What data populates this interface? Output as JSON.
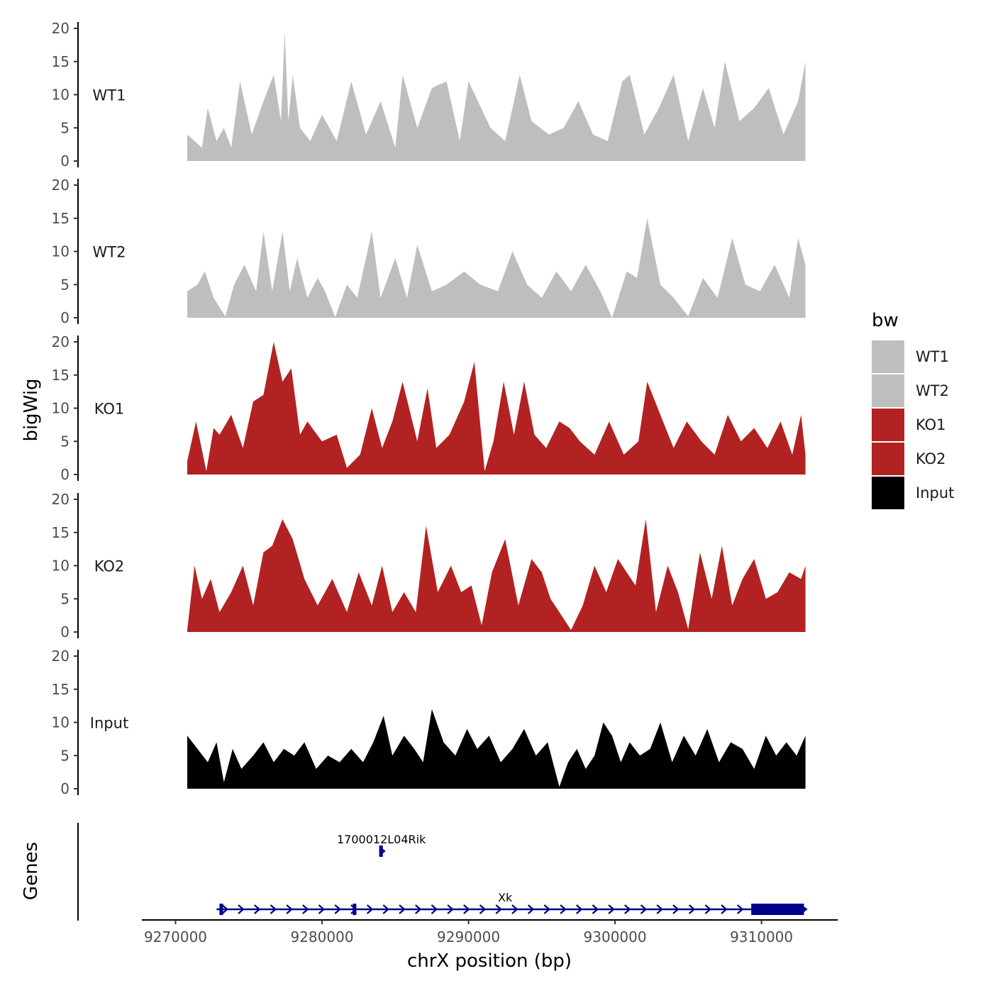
{
  "chart_data": {
    "type": "area",
    "y_axis_title": "bigWig",
    "x_axis_title": "chrX position (bp)",
    "gene_panel_title": "Genes",
    "region": [
      9270800,
      9313000
    ],
    "ylim": [
      0,
      20
    ],
    "y_ticks": [
      0,
      5,
      10,
      15,
      20
    ],
    "y_tick_labels": [
      "0",
      "5",
      "10",
      "15",
      "20"
    ],
    "x_ticks": [
      9270000,
      9280000,
      9290000,
      9300000,
      9310000
    ],
    "x_tick_labels": [
      "9270000",
      "9280000",
      "9290000",
      "9300000",
      "9310000"
    ],
    "x_axis_range": [
      9267700,
      9315200
    ],
    "legend": {
      "title": "bw",
      "entries": [
        {
          "name": "WT1",
          "color": "#bebebe"
        },
        {
          "name": "WT2",
          "color": "#bebebe"
        },
        {
          "name": "KO1",
          "color": "#b22222"
        },
        {
          "name": "KO2",
          "color": "#b22222"
        },
        {
          "name": "Input",
          "color": "#000000"
        }
      ]
    },
    "tracks": [
      {
        "name": "WT1",
        "color": "#bebebe",
        "x": [
          9270800,
          9271800,
          9272200,
          9272800,
          9273300,
          9273800,
          9274400,
          9275200,
          9276000,
          9276700,
          9277200,
          9277450,
          9277700,
          9278000,
          9278500,
          9279200,
          9280000,
          9281000,
          9282000,
          9283000,
          9284000,
          9285000,
          9285500,
          9286500,
          9287500,
          9288500,
          9289400,
          9290000,
          9291500,
          9292500,
          9293500,
          9294300,
          9295500,
          9296500,
          9297500,
          9298500,
          9299500,
          9300500,
          9301000,
          9302000,
          9303000,
          9304000,
          9305000,
          9306000,
          9306800,
          9307500,
          9308500,
          9309500,
          9310500,
          9311500,
          9312500,
          9313000
        ],
        "values": [
          4,
          2,
          8,
          3,
          5,
          2,
          12,
          4,
          9,
          13,
          6,
          19.5,
          6,
          13,
          5,
          3,
          7,
          3,
          12,
          4,
          9,
          2,
          13,
          5,
          11,
          12,
          3,
          12,
          5,
          3,
          13,
          6,
          4,
          5,
          9,
          4,
          3,
          12,
          13,
          4,
          8,
          13,
          3,
          11,
          5,
          15,
          6,
          8,
          11,
          4,
          9,
          15
        ]
      },
      {
        "name": "WT2",
        "color": "#bebebe",
        "x": [
          9270800,
          9271500,
          9272000,
          9272600,
          9273400,
          9274000,
          9274700,
          9275500,
          9276000,
          9276600,
          9277300,
          9277800,
          9278300,
          9279000,
          9279700,
          9280200,
          9280900,
          9281700,
          9282400,
          9283400,
          9284000,
          9285000,
          9285800,
          9286500,
          9287500,
          9288500,
          9289700,
          9290800,
          9292000,
          9293000,
          9294000,
          9295000,
          9296000,
          9297000,
          9298000,
          9299000,
          9299800,
          9300800,
          9301500,
          9302200,
          9303100,
          9304000,
          9305000,
          9306000,
          9307000,
          9308000,
          9308900,
          9309900,
          9310900,
          9311900,
          9312500,
          9313000
        ],
        "values": [
          4,
          5,
          7,
          3,
          0.2,
          5,
          8,
          4,
          13,
          4,
          13,
          4,
          9,
          3,
          6,
          4,
          0.1,
          5,
          3,
          13,
          3,
          9,
          3,
          11,
          4,
          5,
          7,
          5,
          4,
          10,
          5,
          3,
          7,
          4,
          8,
          4,
          0,
          7,
          6,
          15,
          5,
          3,
          0.2,
          6,
          3,
          12,
          5,
          4,
          8,
          3,
          12,
          8
        ]
      },
      {
        "name": "KO1",
        "color": "#b22222",
        "x": [
          9270800,
          9271400,
          9272100,
          9272600,
          9273000,
          9273800,
          9274600,
          9275300,
          9276000,
          9276700,
          9277300,
          9277900,
          9278500,
          9279000,
          9280000,
          9281000,
          9281700,
          9282600,
          9283400,
          9284100,
          9284800,
          9285500,
          9286500,
          9287200,
          9287800,
          9288700,
          9289700,
          9290400,
          9291100,
          9291700,
          9292400,
          9293100,
          9293800,
          9294500,
          9295300,
          9296200,
          9296900,
          9297600,
          9298600,
          9299600,
          9300600,
          9301600,
          9302200,
          9303100,
          9304000,
          9304900,
          9305900,
          9306800,
          9307700,
          9308600,
          9309500,
          9310400,
          9311300,
          9312100,
          9312700,
          9313000
        ],
        "values": [
          2,
          8,
          0.5,
          7,
          6,
          9,
          4,
          11,
          12,
          20,
          14,
          16,
          6,
          8,
          5,
          6,
          1,
          3,
          10,
          4,
          8,
          14,
          5,
          13,
          4,
          6,
          11,
          17,
          0.5,
          5,
          14,
          6,
          14,
          6,
          4,
          8,
          7,
          5,
          3,
          8,
          3,
          5,
          14,
          9,
          4,
          8,
          5,
          3,
          9,
          5,
          7,
          4,
          8,
          3,
          9,
          3
        ]
      },
      {
        "name": "KO2",
        "color": "#b22222",
        "x": [
          9270800,
          9271300,
          9271800,
          9272400,
          9273000,
          9273800,
          9274600,
          9275300,
          9276000,
          9276600,
          9277300,
          9278000,
          9278800,
          9279700,
          9280700,
          9281700,
          9282500,
          9283400,
          9284100,
          9284800,
          9285600,
          9286400,
          9287100,
          9287900,
          9288800,
          9289500,
          9290200,
          9290900,
          9291600,
          9292500,
          9293400,
          9294300,
          9295000,
          9295600,
          9296200,
          9297000,
          9297800,
          9298600,
          9299400,
          9300200,
          9300800,
          9301400,
          9302100,
          9302800,
          9303600,
          9304300,
          9305000,
          9305800,
          9306600,
          9307300,
          9308000,
          9308700,
          9309500,
          9310300,
          9311100,
          9311900,
          9312700,
          9313000
        ],
        "values": [
          0.3,
          10,
          5,
          8,
          3,
          6,
          10,
          4,
          12,
          13,
          17,
          14,
          8,
          4,
          8,
          3,
          9,
          4,
          10,
          3,
          6,
          3,
          16,
          6,
          10,
          6,
          7,
          1,
          9,
          14,
          4,
          11,
          9,
          5,
          3,
          0.3,
          4,
          10,
          6,
          11,
          9,
          7,
          17,
          3,
          10,
          6,
          0.4,
          12,
          5,
          13,
          4,
          8,
          11,
          5,
          6,
          9,
          8,
          10
        ]
      },
      {
        "name": "Input",
        "color": "#000000",
        "x": [
          9270800,
          9271500,
          9272200,
          9272800,
          9273300,
          9273900,
          9274500,
          9275300,
          9276000,
          9276700,
          9277400,
          9278100,
          9278800,
          9279600,
          9280400,
          9281200,
          9282000,
          9282800,
          9283500,
          9284200,
          9284800,
          9285600,
          9286300,
          9286900,
          9287500,
          9288300,
          9289100,
          9289900,
          9290600,
          9291400,
          9292200,
          9293000,
          9293800,
          9294600,
          9295400,
          9296200,
          9296800,
          9297400,
          9298000,
          9298600,
          9299200,
          9299800,
          9300400,
          9301000,
          9301700,
          9302400,
          9303100,
          9303900,
          9304700,
          9305500,
          9306300,
          9307100,
          9307900,
          9308700,
          9309500,
          9310300,
          9311000,
          9311700,
          9312400,
          9313000
        ],
        "values": [
          8,
          6,
          4,
          7,
          1,
          6,
          3,
          5,
          7,
          4,
          6,
          5,
          7,
          3,
          5,
          4,
          6,
          4,
          7,
          11,
          5,
          8,
          6,
          4,
          12,
          7,
          5,
          9,
          6,
          8,
          4,
          6,
          9,
          5,
          7,
          0.3,
          4,
          6,
          3,
          5,
          10,
          8,
          4,
          7,
          5,
          6,
          10,
          4,
          8,
          5,
          9,
          4,
          7,
          6,
          3,
          8,
          5,
          7,
          5,
          8
        ]
      }
    ],
    "genes": [
      {
        "name": "1700012L04Rik",
        "strand": "+",
        "row": 1,
        "start": 9283900,
        "end": 9284200,
        "exons": [
          [
            9283900,
            9284150
          ]
        ]
      },
      {
        "name": "Xk",
        "strand": "+",
        "row": 2,
        "start": 9272800,
        "end": 9313000,
        "exons": [
          [
            9273000,
            9273200
          ],
          [
            9282100,
            9282250
          ],
          [
            9309300,
            9312900
          ]
        ]
      }
    ]
  }
}
